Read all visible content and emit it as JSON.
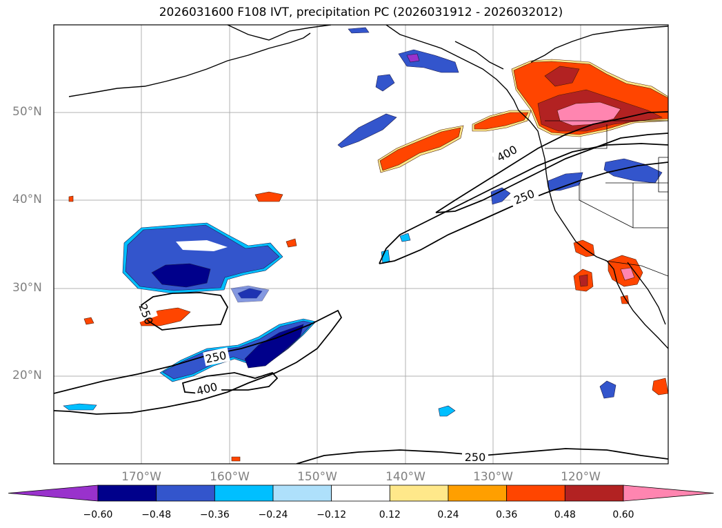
{
  "title": "2026031600 F108 IVT, precipitation PC (2026031912 - 2026032012)",
  "lat_labels": [
    "50°N",
    "40°N",
    "30°N",
    "20°N"
  ],
  "lon_labels": [
    "170°W",
    "160°W",
    "150°W",
    "140°W",
    "130°W",
    "120°W"
  ],
  "colorbar": {
    "ticks": [
      "−0.60",
      "−0.48",
      "−0.36",
      "−0.24",
      "−0.12",
      "0.12",
      "0.24",
      "0.36",
      "0.48",
      "0.60"
    ],
    "colors": [
      "#9932cc",
      "#00008b",
      "#3355cc",
      "#00bfff",
      "#aee0fb",
      "#ffffff",
      "#ffe88a",
      "#ff9f00",
      "#ff4500",
      "#b22222",
      "#ff85b0"
    ]
  },
  "contour_labels": [
    "400",
    "250",
    "250",
    "400",
    "250",
    "250"
  ],
  "colors": {
    "positive_strong": "#ff4500",
    "negative_strong": "#00008b"
  }
}
